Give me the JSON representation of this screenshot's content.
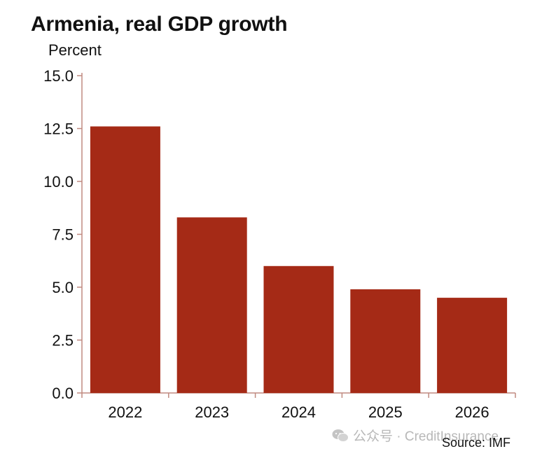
{
  "chart_data": {
    "type": "bar",
    "title": "Armenia, real GDP growth",
    "ylabel": "Percent",
    "categories": [
      "2022",
      "2023",
      "2024",
      "2025",
      "2026"
    ],
    "series": [
      {
        "values": [
          12.6,
          8.3,
          6.0,
          4.9,
          4.5
        ]
      }
    ],
    "ylim": [
      0,
      15
    ],
    "yticks": [
      "0.0",
      "2.5",
      "5.0",
      "7.5",
      "10.0",
      "12.5",
      "15.0"
    ],
    "bar_color": "#a52a16",
    "axis_color": "#c08a80",
    "grid": false,
    "legend": "none",
    "source": "Source: IMF"
  },
  "watermark": {
    "text": "公众号 · CreditInsurance",
    "icon": "wechat-icon"
  }
}
